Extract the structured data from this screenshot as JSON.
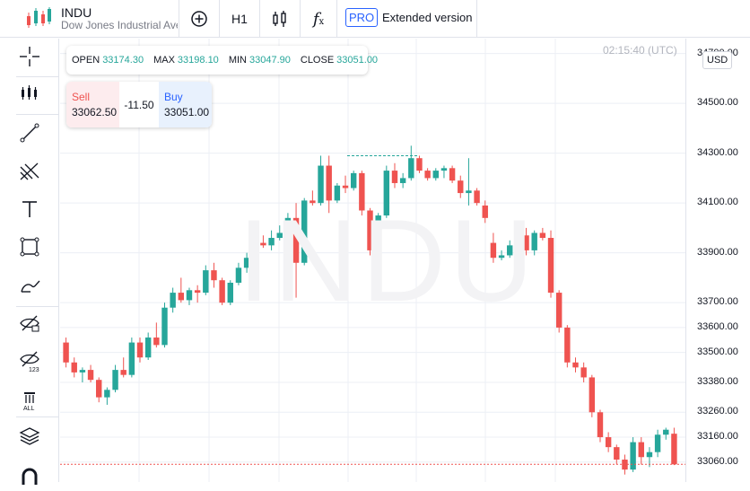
{
  "header": {
    "symbol": "INDU",
    "description": "Dow Jones Industrial Ave",
    "timeframe": "H1",
    "pro_badge": "PRO",
    "extended_label": "Extended version"
  },
  "ohlc": {
    "open_label": "OPEN",
    "open": "33174.30",
    "max_label": "MAX",
    "max": "33198.10",
    "min_label": "MIN",
    "min": "33047.90",
    "close_label": "CLOSE",
    "close": "33051.00"
  },
  "trade": {
    "sell_label": "Sell",
    "sell_price": "33062.50",
    "spread": "-11.50",
    "buy_label": "Buy",
    "buy_price": "33051.00"
  },
  "time_label": "02:15:40 (UTC)",
  "watermark": "INDU",
  "currency": "USD",
  "price_ticks": [
    "34700.00",
    "34500.00",
    "34300.00",
    "34100.00",
    "33900.00",
    "33700.00",
    "33600.00",
    "33500.00",
    "33380.00",
    "33260.00",
    "33160.00",
    "33060.00"
  ],
  "colors": {
    "up": "#26a69a",
    "down": "#ef5350",
    "grid": "#eceff5",
    "accent": "#2962ff"
  },
  "left_tools": [
    "crosshair-icon",
    "indicators-icon",
    "trendline-icon",
    "fib-icon",
    "text-icon",
    "rectangle-icon",
    "brush-icon",
    "hide-drawings-icon",
    "hide-values-icon",
    "delete-all-icon",
    "layers-icon",
    "magnet-icon"
  ],
  "delete_all_label": "ALL",
  "chart_data": {
    "type": "candlestick",
    "series": [
      {
        "name": "INDU",
        "candles": [
          [
            33540,
            33560,
            33440,
            33460
          ],
          [
            33460,
            33480,
            33400,
            33420
          ],
          [
            33420,
            33440,
            33380,
            33430
          ],
          [
            33430,
            33450,
            33380,
            33390
          ],
          [
            33390,
            33400,
            33300,
            33320
          ],
          [
            33320,
            33360,
            33290,
            33350
          ],
          [
            33350,
            33450,
            33340,
            33430
          ],
          [
            33430,
            33480,
            33400,
            33410
          ],
          [
            33410,
            33560,
            33400,
            33540
          ],
          [
            33540,
            33560,
            33460,
            33480
          ],
          [
            33480,
            33580,
            33470,
            33560
          ],
          [
            33560,
            33620,
            33520,
            33530
          ],
          [
            33530,
            33700,
            33520,
            33680
          ],
          [
            33680,
            33760,
            33660,
            33740
          ],
          [
            33740,
            33800,
            33700,
            33710
          ],
          [
            33710,
            33760,
            33690,
            33750
          ],
          [
            33750,
            33770,
            33700,
            33740
          ],
          [
            33740,
            33850,
            33730,
            33830
          ],
          [
            33830,
            33860,
            33760,
            33790
          ],
          [
            33790,
            33800,
            33690,
            33700
          ],
          [
            33700,
            33790,
            33690,
            33780
          ],
          [
            33780,
            33860,
            33770,
            33840
          ],
          [
            33840,
            33900,
            33820,
            33880
          ],
          [
            33880,
            33950,
            33860,
            33940
          ],
          [
            33940,
            33970,
            33920,
            33930
          ],
          [
            33930,
            33990,
            33910,
            33960
          ],
          [
            33960,
            34010,
            33950,
            33980
          ],
          [
            33980,
            34060,
            33970,
            34040
          ],
          [
            34040,
            34100,
            33720,
            33860
          ],
          [
            33860,
            34120,
            33850,
            34110
          ],
          [
            34110,
            34150,
            34090,
            34100
          ],
          [
            34100,
            34290,
            34090,
            34250
          ],
          [
            34250,
            34290,
            34060,
            34110
          ],
          [
            34110,
            34180,
            34100,
            34170
          ],
          [
            34170,
            34210,
            34140,
            34160
          ],
          [
            34160,
            34230,
            34150,
            34220
          ],
          [
            34220,
            34230,
            34050,
            34070
          ],
          [
            34070,
            34080,
            33890,
            33910
          ],
          [
            33910,
            34060,
            33870,
            34050
          ],
          [
            34050,
            34250,
            34040,
            34230
          ],
          [
            34230,
            34260,
            34160,
            34180
          ],
          [
            34180,
            34220,
            34160,
            34200
          ],
          [
            34200,
            34330,
            34190,
            34280
          ],
          [
            34280,
            34290,
            34220,
            34230
          ],
          [
            34230,
            34240,
            34190,
            34200
          ],
          [
            34200,
            34240,
            34190,
            34230
          ],
          [
            34230,
            34250,
            34200,
            34240
          ],
          [
            34240,
            34250,
            34180,
            34190
          ],
          [
            34190,
            34210,
            34120,
            34140
          ],
          [
            34140,
            34280,
            34090,
            34150
          ],
          [
            34150,
            34160,
            34090,
            34100
          ],
          [
            34090,
            34110,
            34020,
            34040
          ],
          [
            33940,
            33980,
            33860,
            33880
          ],
          [
            33880,
            33910,
            33870,
            33890
          ],
          [
            33890,
            33950,
            33880,
            33930
          ],
          [
            33930,
            34010,
            33910,
            33970
          ],
          [
            33970,
            34000,
            33890,
            33910
          ],
          [
            33910,
            33990,
            33890,
            33980
          ],
          [
            33980,
            34000,
            33950,
            33960
          ],
          [
            33960,
            33990,
            33720,
            33740
          ],
          [
            33740,
            33750,
            33580,
            33600
          ],
          [
            33600,
            33610,
            33440,
            33460
          ],
          [
            33460,
            33480,
            33420,
            33440
          ],
          [
            33440,
            33460,
            33380,
            33400
          ],
          [
            33400,
            33410,
            33240,
            33260
          ],
          [
            33260,
            33270,
            33140,
            33160
          ],
          [
            33160,
            33180,
            33100,
            33120
          ],
          [
            33120,
            33130,
            33050,
            33070
          ],
          [
            33070,
            33090,
            33010,
            33030
          ],
          [
            33030,
            33160,
            33020,
            33140
          ],
          [
            33140,
            33160,
            33050,
            33080
          ],
          [
            33080,
            33120,
            33040,
            33100
          ],
          [
            33100,
            33190,
            33080,
            33170
          ],
          [
            33170,
            33198,
            33150,
            33190
          ],
          [
            33174,
            33198,
            33048,
            33051
          ]
        ]
      }
    ],
    "price_line": 33051.0,
    "ylim": [
      32980,
      34760
    ],
    "grid": true
  }
}
